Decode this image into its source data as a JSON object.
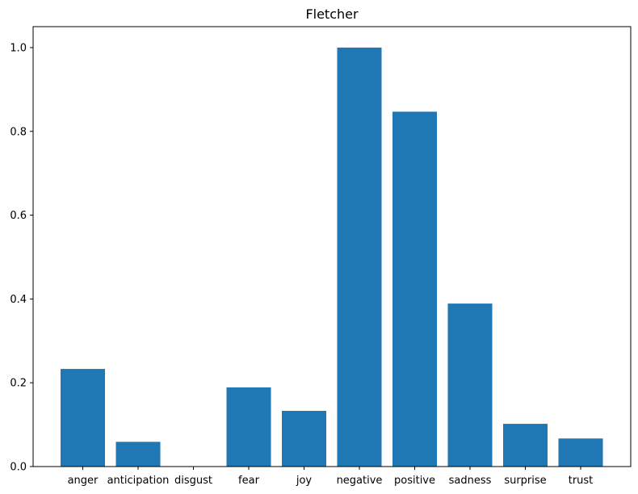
{
  "chart_data": {
    "type": "bar",
    "title": "Fletcher",
    "xlabel": "",
    "ylabel": "",
    "categories": [
      "anger",
      "anticipation",
      "disgust",
      "fear",
      "joy",
      "negative",
      "positive",
      "sadness",
      "surprise",
      "trust"
    ],
    "values": [
      0.233,
      0.059,
      0.0,
      0.189,
      0.133,
      1.0,
      0.847,
      0.389,
      0.102,
      0.067
    ],
    "ylim": [
      0,
      1.05
    ],
    "yticks": [
      "0.0",
      "0.2",
      "0.4",
      "0.6",
      "0.8",
      "1.0"
    ],
    "bar_color": "#1f77b4",
    "grid": false
  }
}
